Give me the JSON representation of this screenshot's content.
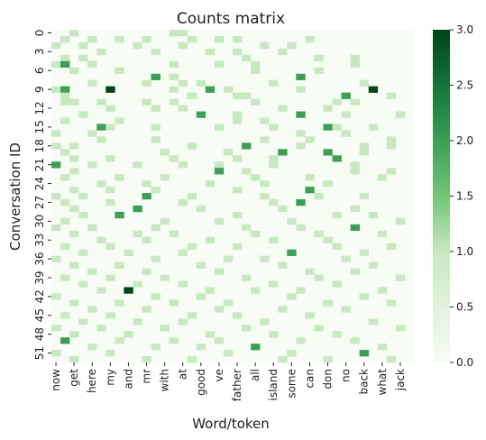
{
  "chart_data": {
    "type": "heatmap",
    "title": "Counts matrix",
    "xlabel": "Word/token",
    "ylabel": "Conversation ID",
    "x_tick_labels": [
      "now",
      "get",
      "here",
      "my",
      "and",
      "mr",
      "with",
      "at",
      "good",
      "ve",
      "father",
      "all",
      "island",
      "some",
      "can",
      "don",
      "no",
      "back",
      "what",
      "jack"
    ],
    "y_tick_labels": [
      "0",
      "3",
      "6",
      "9",
      "12",
      "15",
      "18",
      "21",
      "24",
      "27",
      "30",
      "33",
      "36",
      "39",
      "42",
      "45",
      "48",
      "51"
    ],
    "n_cols": 40,
    "n_rows": 53,
    "value_range": [
      0,
      3
    ],
    "colorbar_ticks": [
      "0.0",
      "0.5",
      "1.0",
      "1.5",
      "2.0",
      "2.5",
      "3.0"
    ],
    "colormap": "Greens",
    "colors": {
      "low": "#f7fcf5",
      "mid": "#74c476",
      "high": "#00441b"
    },
    "cells": [
      [
        0,
        2,
        1
      ],
      [
        0,
        13,
        1
      ],
      [
        0,
        14,
        1
      ],
      [
        1,
        1,
        1
      ],
      [
        1,
        4,
        1
      ],
      [
        1,
        7,
        1
      ],
      [
        1,
        10,
        1
      ],
      [
        1,
        15,
        1
      ],
      [
        1,
        18,
        1
      ],
      [
        1,
        20,
        1
      ],
      [
        1,
        28,
        1
      ],
      [
        2,
        0,
        1
      ],
      [
        2,
        3,
        1
      ],
      [
        2,
        9,
        1
      ],
      [
        2,
        14,
        1
      ],
      [
        2,
        23,
        1
      ],
      [
        2,
        26,
        1
      ],
      [
        3,
        5,
        1
      ],
      [
        3,
        11,
        1
      ],
      [
        3,
        17,
        1
      ],
      [
        3,
        20,
        1
      ],
      [
        3,
        25,
        1
      ],
      [
        4,
        1,
        1
      ],
      [
        4,
        3,
        1
      ],
      [
        4,
        21,
        1
      ],
      [
        4,
        29,
        1
      ],
      [
        4,
        33,
        1
      ],
      [
        5,
        0,
        1
      ],
      [
        5,
        1,
        2
      ],
      [
        5,
        4,
        1
      ],
      [
        5,
        13,
        1
      ],
      [
        5,
        18,
        1
      ],
      [
        5,
        22,
        1
      ],
      [
        5,
        33,
        1
      ],
      [
        6,
        2,
        1
      ],
      [
        6,
        7,
        1
      ],
      [
        6,
        22,
        1
      ],
      [
        6,
        29,
        1
      ],
      [
        7,
        11,
        2
      ],
      [
        7,
        13,
        1
      ],
      [
        7,
        27,
        2
      ],
      [
        8,
        4,
        1
      ],
      [
        8,
        10,
        1
      ],
      [
        8,
        14,
        1
      ],
      [
        8,
        16,
        1
      ],
      [
        8,
        24,
        1
      ],
      [
        8,
        34,
        1
      ],
      [
        9,
        0,
        1
      ],
      [
        9,
        1,
        2
      ],
      [
        9,
        6,
        3
      ],
      [
        9,
        13,
        1
      ],
      [
        9,
        17,
        2
      ],
      [
        9,
        19,
        1
      ],
      [
        9,
        27,
        1
      ],
      [
        9,
        35,
        3
      ],
      [
        10,
        1,
        1
      ],
      [
        10,
        15,
        1
      ],
      [
        10,
        20,
        1
      ],
      [
        10,
        21,
        1
      ],
      [
        10,
        32,
        2
      ],
      [
        10,
        37,
        1
      ],
      [
        11,
        1,
        1
      ],
      [
        11,
        2,
        1
      ],
      [
        11,
        5,
        1
      ],
      [
        11,
        10,
        1
      ],
      [
        11,
        13,
        1
      ],
      [
        11,
        22,
        1
      ],
      [
        11,
        31,
        1
      ],
      [
        11,
        33,
        1
      ],
      [
        12,
        6,
        1
      ],
      [
        12,
        11,
        1
      ],
      [
        12,
        14,
        1
      ],
      [
        12,
        25,
        1
      ],
      [
        12,
        30,
        1
      ],
      [
        13,
        3,
        1
      ],
      [
        13,
        16,
        2
      ],
      [
        13,
        20,
        1
      ],
      [
        13,
        27,
        2
      ],
      [
        13,
        32,
        1
      ],
      [
        13,
        38,
        1
      ],
      [
        14,
        1,
        1
      ],
      [
        14,
        7,
        1
      ],
      [
        14,
        20,
        1
      ],
      [
        14,
        23,
        1
      ],
      [
        15,
        5,
        2
      ],
      [
        15,
        6,
        1
      ],
      [
        15,
        11,
        1
      ],
      [
        15,
        18,
        1
      ],
      [
        15,
        24,
        1
      ],
      [
        15,
        30,
        2
      ],
      [
        15,
        31,
        1
      ],
      [
        15,
        35,
        1
      ],
      [
        16,
        0,
        1
      ],
      [
        16,
        4,
        1
      ],
      [
        16,
        27,
        1
      ],
      [
        16,
        32,
        1
      ],
      [
        17,
        5,
        1
      ],
      [
        17,
        11,
        1
      ],
      [
        17,
        23,
        1
      ],
      [
        17,
        28,
        1
      ],
      [
        17,
        37,
        1
      ],
      [
        18,
        0,
        1
      ],
      [
        18,
        2,
        1
      ],
      [
        18,
        15,
        1
      ],
      [
        18,
        21,
        2
      ],
      [
        18,
        27,
        1
      ],
      [
        18,
        34,
        1
      ],
      [
        18,
        37,
        1
      ],
      [
        19,
        1,
        1
      ],
      [
        19,
        12,
        1
      ],
      [
        19,
        19,
        1
      ],
      [
        19,
        25,
        2
      ],
      [
        19,
        30,
        2
      ],
      [
        19,
        34,
        1
      ],
      [
        20,
        2,
        1
      ],
      [
        20,
        6,
        1
      ],
      [
        20,
        13,
        1
      ],
      [
        20,
        20,
        1
      ],
      [
        20,
        24,
        1
      ],
      [
        20,
        31,
        2
      ],
      [
        21,
        0,
        2
      ],
      [
        21,
        4,
        1
      ],
      [
        21,
        9,
        1
      ],
      [
        21,
        14,
        1
      ],
      [
        21,
        18,
        1
      ],
      [
        21,
        24,
        1
      ],
      [
        21,
        33,
        1
      ],
      [
        22,
        2,
        1
      ],
      [
        22,
        18,
        2
      ],
      [
        22,
        21,
        1
      ],
      [
        22,
        33,
        1
      ],
      [
        22,
        37,
        1
      ],
      [
        23,
        1,
        1
      ],
      [
        23,
        7,
        1
      ],
      [
        23,
        12,
        1
      ],
      [
        23,
        22,
        1
      ],
      [
        23,
        28,
        1
      ],
      [
        23,
        36,
        1
      ],
      [
        24,
        5,
        1
      ],
      [
        24,
        10,
        1
      ],
      [
        24,
        17,
        1
      ],
      [
        24,
        23,
        1
      ],
      [
        24,
        30,
        1
      ],
      [
        25,
        2,
        1
      ],
      [
        25,
        6,
        1
      ],
      [
        25,
        11,
        1
      ],
      [
        25,
        20,
        1
      ],
      [
        25,
        28,
        2
      ],
      [
        26,
        0,
        1
      ],
      [
        26,
        3,
        1
      ],
      [
        26,
        10,
        2
      ],
      [
        26,
        15,
        1
      ],
      [
        26,
        23,
        1
      ],
      [
        26,
        29,
        1
      ],
      [
        26,
        34,
        1
      ],
      [
        27,
        1,
        1
      ],
      [
        27,
        6,
        1
      ],
      [
        27,
        14,
        1
      ],
      [
        27,
        24,
        1
      ],
      [
        27,
        27,
        2
      ],
      [
        28,
        2,
        1
      ],
      [
        28,
        9,
        2
      ],
      [
        28,
        16,
        1
      ],
      [
        28,
        25,
        1
      ],
      [
        28,
        33,
        1
      ],
      [
        29,
        3,
        1
      ],
      [
        29,
        7,
        2
      ],
      [
        29,
        20,
        1
      ],
      [
        29,
        31,
        1
      ],
      [
        29,
        35,
        1
      ],
      [
        30,
        1,
        1
      ],
      [
        30,
        12,
        1
      ],
      [
        30,
        18,
        1
      ],
      [
        30,
        26,
        1
      ],
      [
        30,
        38,
        1
      ],
      [
        31,
        0,
        1
      ],
      [
        31,
        4,
        1
      ],
      [
        31,
        11,
        1
      ],
      [
        31,
        21,
        1
      ],
      [
        31,
        27,
        1
      ],
      [
        31,
        33,
        2
      ],
      [
        32,
        2,
        1
      ],
      [
        32,
        9,
        1
      ],
      [
        32,
        13,
        1
      ],
      [
        32,
        22,
        1
      ],
      [
        32,
        29,
        1
      ],
      [
        32,
        36,
        1
      ],
      [
        33,
        5,
        1
      ],
      [
        33,
        10,
        1
      ],
      [
        33,
        17,
        1
      ],
      [
        33,
        24,
        1
      ],
      [
        33,
        30,
        1
      ],
      [
        34,
        1,
        1
      ],
      [
        34,
        6,
        1
      ],
      [
        34,
        15,
        1
      ],
      [
        34,
        20,
        1
      ],
      [
        34,
        31,
        1
      ],
      [
        34,
        37,
        1
      ],
      [
        35,
        3,
        1
      ],
      [
        35,
        8,
        1
      ],
      [
        35,
        14,
        1
      ],
      [
        35,
        26,
        2
      ],
      [
        35,
        34,
        1
      ],
      [
        36,
        0,
        1
      ],
      [
        36,
        11,
        1
      ],
      [
        36,
        19,
        1
      ],
      [
        36,
        23,
        1
      ],
      [
        36,
        32,
        1
      ],
      [
        37,
        2,
        1
      ],
      [
        37,
        7,
        1
      ],
      [
        37,
        16,
        1
      ],
      [
        37,
        25,
        1
      ],
      [
        37,
        35,
        1
      ],
      [
        38,
        4,
        1
      ],
      [
        38,
        10,
        1
      ],
      [
        38,
        18,
        1
      ],
      [
        38,
        28,
        1
      ],
      [
        38,
        33,
        1
      ],
      [
        39,
        1,
        1
      ],
      [
        39,
        6,
        1
      ],
      [
        39,
        12,
        1
      ],
      [
        39,
        21,
        1
      ],
      [
        39,
        29,
        1
      ],
      [
        39,
        38,
        1
      ],
      [
        40,
        3,
        1
      ],
      [
        40,
        9,
        1
      ],
      [
        40,
        14,
        1
      ],
      [
        40,
        24,
        1
      ],
      [
        40,
        31,
        1
      ],
      [
        41,
        5,
        1
      ],
      [
        41,
        8,
        3
      ],
      [
        41,
        17,
        1
      ],
      [
        41,
        22,
        1
      ],
      [
        41,
        27,
        1
      ],
      [
        41,
        36,
        1
      ],
      [
        42,
        0,
        1
      ],
      [
        42,
        11,
        1
      ],
      [
        42,
        16,
        1
      ],
      [
        42,
        26,
        1
      ],
      [
        42,
        34,
        1
      ],
      [
        43,
        2,
        1
      ],
      [
        43,
        7,
        1
      ],
      [
        43,
        13,
        1
      ],
      [
        43,
        19,
        1
      ],
      [
        43,
        30,
        1
      ],
      [
        43,
        37,
        1
      ],
      [
        44,
        4,
        1
      ],
      [
        44,
        10,
        1
      ],
      [
        44,
        18,
        1
      ],
      [
        44,
        25,
        1
      ],
      [
        44,
        32,
        1
      ],
      [
        45,
        1,
        1
      ],
      [
        45,
        6,
        1
      ],
      [
        45,
        15,
        1
      ],
      [
        45,
        20,
        1
      ],
      [
        45,
        28,
        1
      ],
      [
        46,
        3,
        1
      ],
      [
        46,
        9,
        1
      ],
      [
        46,
        14,
        1
      ],
      [
        46,
        23,
        1
      ],
      [
        46,
        35,
        1
      ],
      [
        47,
        0,
        1
      ],
      [
        47,
        5,
        1
      ],
      [
        47,
        12,
        1
      ],
      [
        47,
        21,
        1
      ],
      [
        47,
        29,
        1
      ],
      [
        47,
        38,
        1
      ],
      [
        48,
        2,
        1
      ],
      [
        48,
        8,
        1
      ],
      [
        48,
        17,
        1
      ],
      [
        48,
        24,
        1
      ],
      [
        48,
        31,
        1
      ],
      [
        49,
        1,
        2
      ],
      [
        49,
        7,
        1
      ],
      [
        49,
        13,
        1
      ],
      [
        49,
        18,
        1
      ],
      [
        49,
        27,
        1
      ],
      [
        49,
        33,
        1
      ],
      [
        50,
        4,
        1
      ],
      [
        50,
        11,
        1
      ],
      [
        50,
        16,
        1
      ],
      [
        50,
        22,
        2
      ],
      [
        50,
        36,
        1
      ],
      [
        51,
        0,
        1
      ],
      [
        51,
        6,
        1
      ],
      [
        51,
        19,
        1
      ],
      [
        51,
        26,
        1
      ],
      [
        51,
        34,
        2
      ],
      [
        52,
        2,
        1
      ],
      [
        52,
        10,
        1
      ],
      [
        52,
        15,
        1
      ],
      [
        52,
        25,
        1
      ],
      [
        52,
        30,
        1
      ],
      [
        52,
        37,
        1
      ]
    ]
  }
}
